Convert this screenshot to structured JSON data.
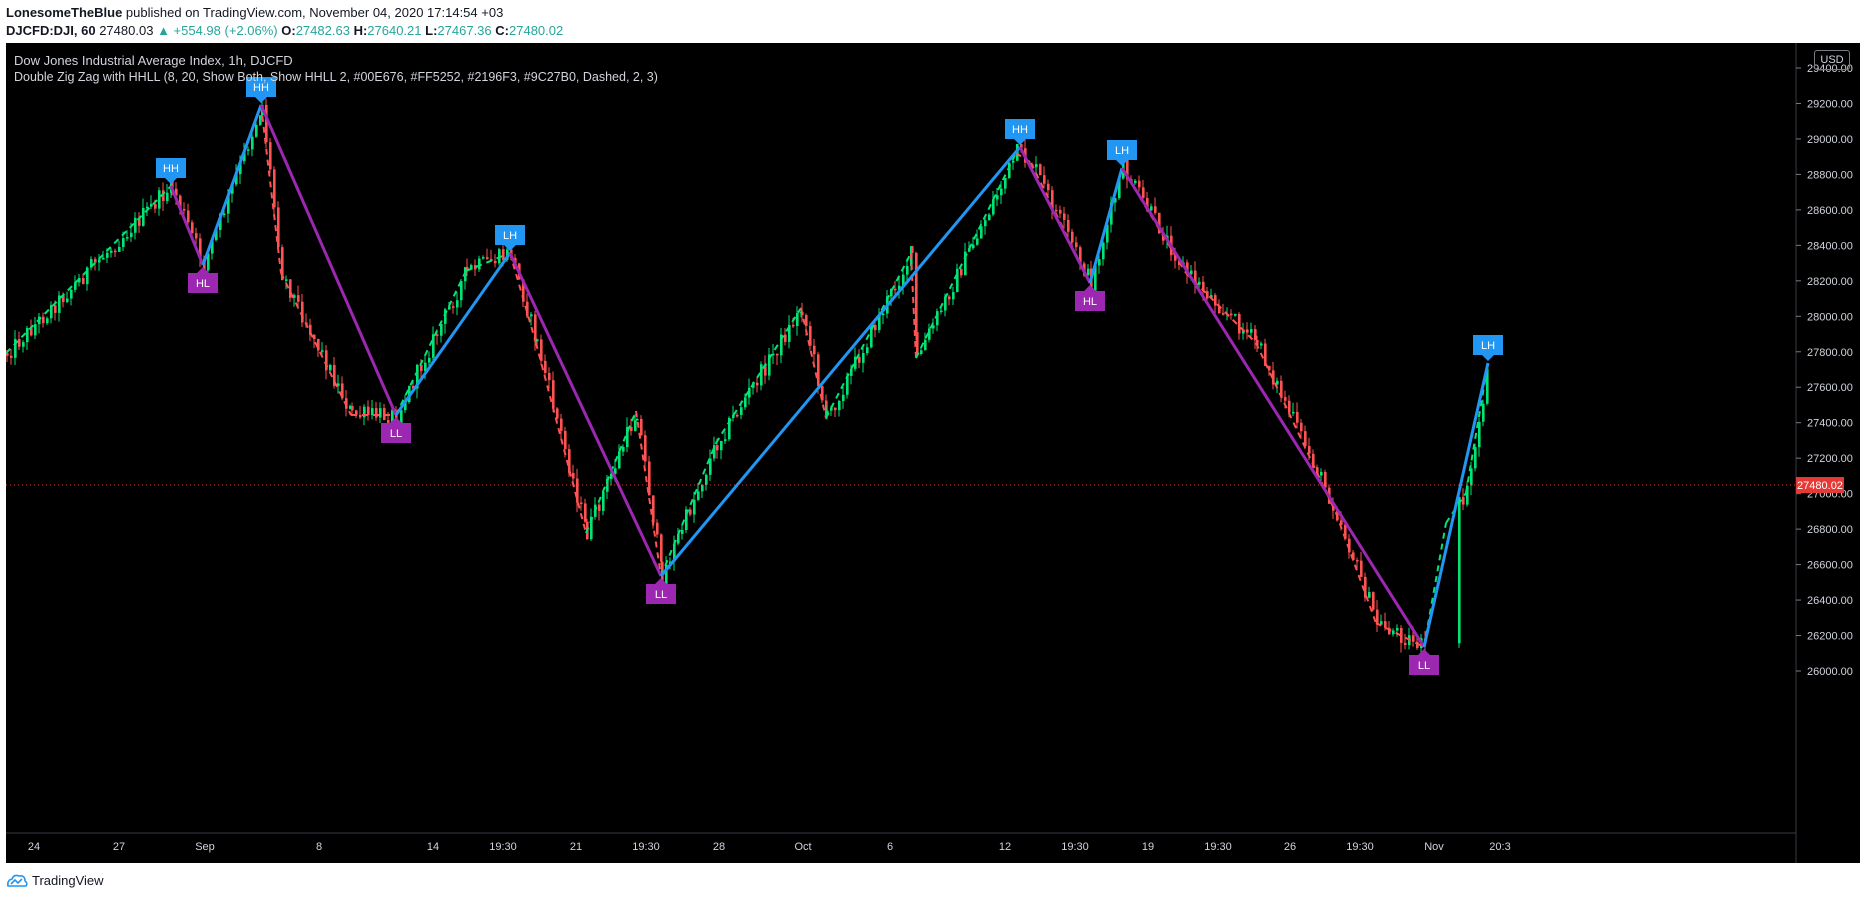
{
  "header": {
    "author": "LonesomeTheBlue",
    "published_text": "published on TradingView.com, November 04, 2020 17:14:54 +03",
    "symbol": "DJCFD:DJI, 60",
    "last": "27480.03",
    "change": "▲ +554.98 (+2.06%)",
    "o_label": "O:",
    "o_value": "27482.63",
    "h_label": "H:",
    "h_value": "27640.21",
    "l_label": "L:",
    "l_value": "27467.36",
    "c_label": "C:",
    "c_value": "27480.02"
  },
  "chart": {
    "title": "Dow Jones Industrial Average Index, 1h, DJCFD",
    "indicator": "Double Zig Zag with HHLL (8, 20, Show Both, Show HHLL 2, #00E676, #FF5252, #2196F3, #9C27B0, Dashed, 2, 3)",
    "currency": "USD",
    "current_price_label": "27480.02",
    "colors": {
      "background": "#000000",
      "up_candle": "#00E676",
      "down_candle": "#FF5252",
      "zigzag_up": "#2196F3",
      "zigzag_down": "#9C27B0",
      "price_line": "#e53935",
      "axis_text": "#d1d4dc"
    },
    "y_ticks": [
      "29400.00",
      "29200.00",
      "29000.00",
      "28800.00",
      "28600.00",
      "28400.00",
      "28200.00",
      "28000.00",
      "27800.00",
      "27600.00",
      "27400.00",
      "27200.00",
      "27000.00",
      "26800.00",
      "26600.00",
      "26400.00",
      "26200.00",
      "26000.00"
    ],
    "x_ticks": [
      "24",
      "27",
      "Sep",
      "8",
      "14",
      "19:30",
      "21",
      "19:30",
      "28",
      "Oct",
      "6",
      "12",
      "19:30",
      "19",
      "19:30",
      "26",
      "19:30",
      "Nov",
      "20:3"
    ],
    "pivot_labels": [
      "HH",
      "HL",
      "HH",
      "LL",
      "LH",
      "LL",
      "HH",
      "HL",
      "LH",
      "LL",
      "LH"
    ]
  },
  "footer": {
    "brand": "TradingView"
  }
}
